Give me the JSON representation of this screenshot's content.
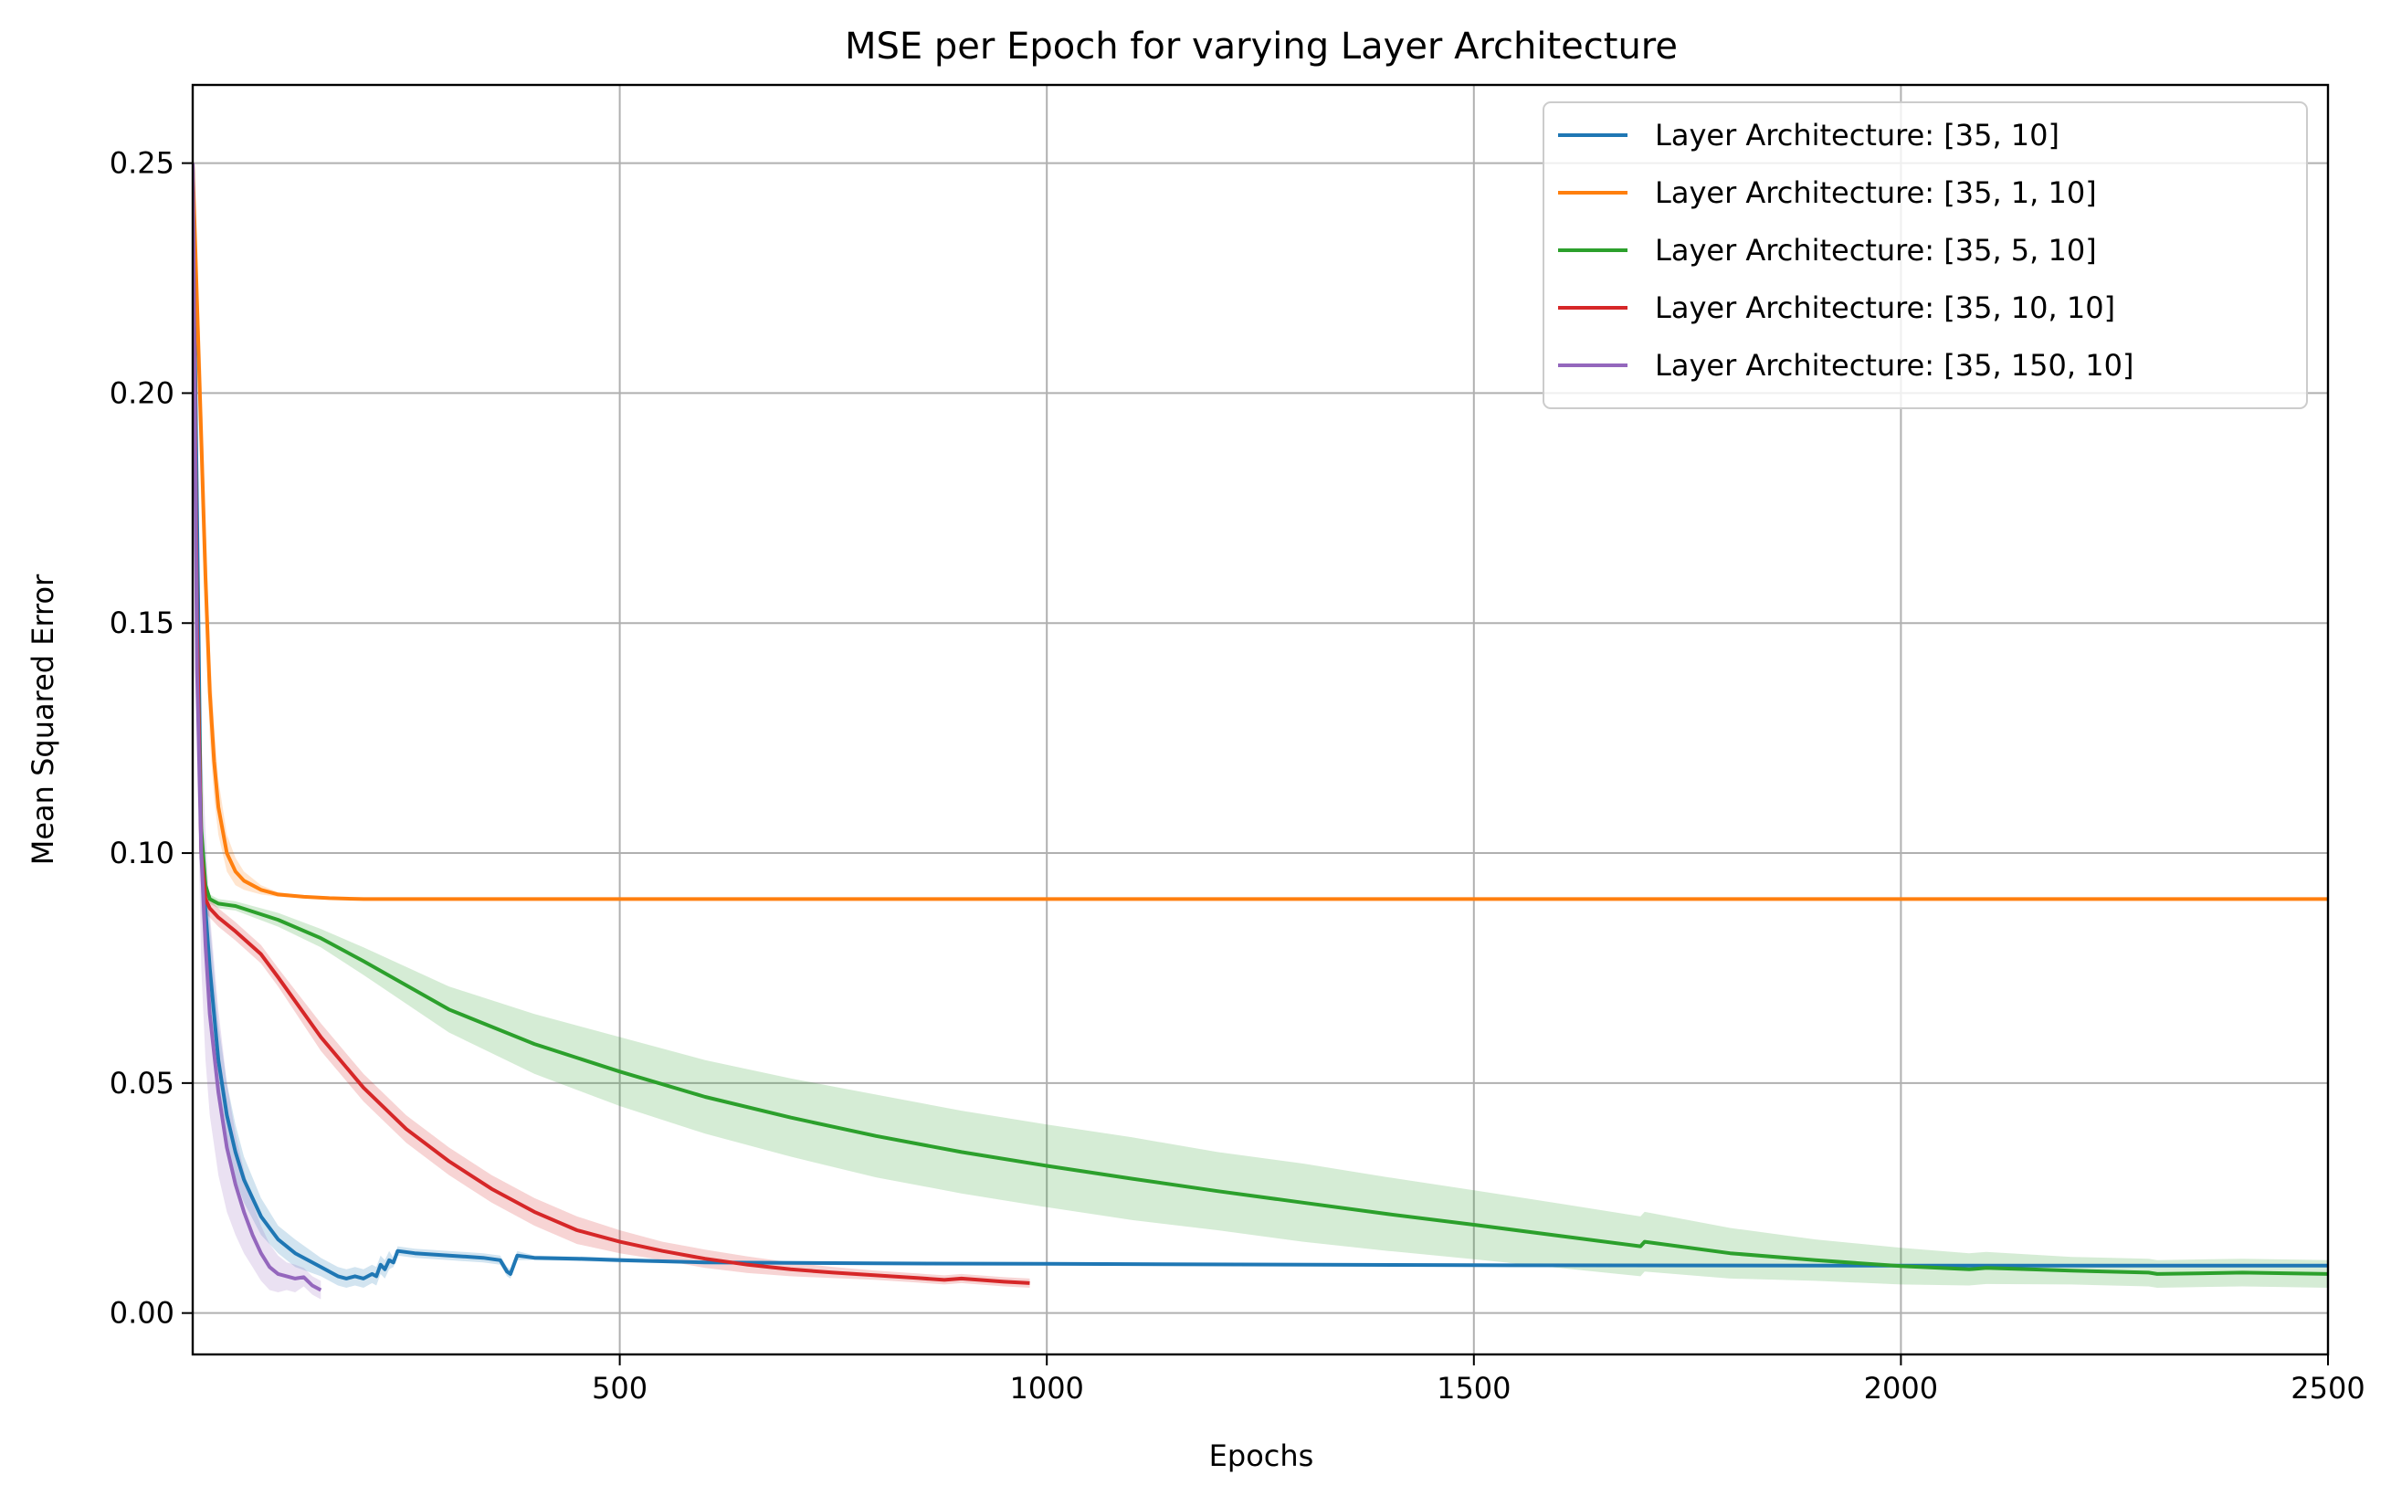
{
  "chart_data": {
    "type": "line",
    "title": "MSE per Epoch for varying Layer Architecture",
    "xlabel": "Epochs",
    "ylabel": "Mean Squared Error",
    "xlim": [
      0,
      2500
    ],
    "ylim": [
      -0.009,
      0.267
    ],
    "xticks": [
      500,
      1000,
      1500,
      2000,
      2500
    ],
    "xtick_labels": [
      "500",
      "1000",
      "1500",
      "2000",
      "2500"
    ],
    "yticks": [
      0.0,
      0.05,
      0.1,
      0.15,
      0.2,
      0.25
    ],
    "ytick_labels": [
      "0.00",
      "0.05",
      "0.10",
      "0.15",
      "0.20",
      "0.25"
    ],
    "grid": true,
    "legend_position": "top-right",
    "series": [
      {
        "name": "Layer Architecture: [35, 10]",
        "color": "#1f77b4",
        "x": [
          0,
          10,
          20,
          30,
          40,
          50,
          60,
          80,
          100,
          120,
          150,
          170,
          180,
          190,
          200,
          210,
          215,
          220,
          225,
          230,
          235,
          240,
          260,
          300,
          340,
          360,
          368,
          372,
          380,
          400,
          450,
          500,
          600,
          800,
          1000,
          1500,
          2000,
          2500
        ],
        "y": [
          0.25,
          0.1,
          0.075,
          0.055,
          0.043,
          0.035,
          0.029,
          0.021,
          0.016,
          0.013,
          0.01,
          0.008,
          0.0075,
          0.008,
          0.0075,
          0.0085,
          0.008,
          0.0105,
          0.0095,
          0.0115,
          0.011,
          0.0135,
          0.013,
          0.0125,
          0.012,
          0.0115,
          0.009,
          0.0085,
          0.0125,
          0.012,
          0.0118,
          0.0115,
          0.011,
          0.0108,
          0.0107,
          0.0104,
          0.0103,
          0.0103
        ],
        "band": [
          0.004,
          0.012,
          0.01,
          0.008,
          0.007,
          0.006,
          0.005,
          0.004,
          0.003,
          0.003,
          0.002,
          0.002,
          0.002,
          0.002,
          0.002,
          0.002,
          0.002,
          0.002,
          0.002,
          0.002,
          0.001,
          0.001,
          0.001,
          0.001,
          0.001,
          0.001,
          0.001,
          0.001,
          0.001,
          0.0005,
          0.0005,
          0.0005,
          0.0003,
          0.0003,
          0.0003,
          0.0002,
          0.0002,
          0.0002
        ]
      },
      {
        "name": "Layer Architecture: [35, 1, 10]",
        "color": "#ff7f0e",
        "x": [
          0,
          5,
          10,
          15,
          20,
          25,
          30,
          40,
          50,
          60,
          70,
          80,
          100,
          130,
          160,
          200,
          300,
          500,
          1000,
          1500,
          2000,
          2500
        ],
        "y": [
          0.25,
          0.22,
          0.19,
          0.16,
          0.135,
          0.12,
          0.11,
          0.1,
          0.096,
          0.094,
          0.093,
          0.092,
          0.091,
          0.0905,
          0.0902,
          0.09,
          0.09,
          0.09,
          0.09,
          0.09,
          0.09,
          0.09
        ],
        "band": [
          0.005,
          0.01,
          0.015,
          0.012,
          0.01,
          0.008,
          0.006,
          0.004,
          0.003,
          0.002,
          0.0015,
          0.001,
          0.0005,
          0.0003,
          0.0002,
          0.0002,
          0.0001,
          0.0001,
          0.0001,
          0.0001,
          0.0001,
          0.0001
        ]
      },
      {
        "name": "Layer Architecture: [35, 5, 10]",
        "color": "#2ca02c",
        "x": [
          0,
          5,
          10,
          15,
          20,
          30,
          50,
          100,
          150,
          200,
          300,
          400,
          500,
          600,
          700,
          800,
          900,
          1000,
          1100,
          1200,
          1300,
          1400,
          1500,
          1600,
          1695,
          1700,
          1800,
          1900,
          2000,
          2080,
          2100,
          2200,
          2290,
          2300,
          2400,
          2500
        ],
        "y": [
          0.25,
          0.15,
          0.105,
          0.093,
          0.09,
          0.089,
          0.0885,
          0.0855,
          0.0815,
          0.0765,
          0.066,
          0.0585,
          0.0525,
          0.047,
          0.0425,
          0.0385,
          0.035,
          0.032,
          0.0292,
          0.0265,
          0.024,
          0.0215,
          0.0192,
          0.0168,
          0.0145,
          0.0155,
          0.013,
          0.0115,
          0.0102,
          0.0095,
          0.0098,
          0.0092,
          0.0088,
          0.0085,
          0.0088,
          0.0085
        ],
        "band": [
          0.005,
          0.01,
          0.006,
          0.002,
          0.001,
          0.001,
          0.001,
          0.0015,
          0.002,
          0.003,
          0.005,
          0.0065,
          0.0075,
          0.008,
          0.0085,
          0.009,
          0.009,
          0.009,
          0.009,
          0.0085,
          0.0085,
          0.008,
          0.0075,
          0.007,
          0.0065,
          0.0065,
          0.0055,
          0.0045,
          0.004,
          0.0035,
          0.0035,
          0.003,
          0.003,
          0.003,
          0.003,
          0.003
        ]
      },
      {
        "name": "Layer Architecture: [35, 10, 10]",
        "color": "#d62728",
        "x": [
          0,
          5,
          10,
          15,
          20,
          30,
          50,
          80,
          100,
          150,
          200,
          250,
          300,
          350,
          400,
          450,
          500,
          550,
          600,
          650,
          700,
          750,
          800,
          850,
          880,
          900,
          950,
          980
        ],
        "y": [
          0.25,
          0.15,
          0.1,
          0.09,
          0.088,
          0.086,
          0.083,
          0.078,
          0.073,
          0.06,
          0.049,
          0.04,
          0.033,
          0.027,
          0.022,
          0.018,
          0.0155,
          0.0135,
          0.0118,
          0.0105,
          0.0095,
          0.0088,
          0.0082,
          0.0076,
          0.0072,
          0.0075,
          0.0068,
          0.0065
        ],
        "band": [
          0.005,
          0.01,
          0.006,
          0.003,
          0.002,
          0.002,
          0.002,
          0.002,
          0.002,
          0.003,
          0.003,
          0.003,
          0.003,
          0.003,
          0.003,
          0.003,
          0.0025,
          0.002,
          0.002,
          0.0018,
          0.0015,
          0.0012,
          0.001,
          0.001,
          0.001,
          0.001,
          0.001,
          0.001
        ]
      },
      {
        "name": "Layer Architecture: [35, 150, 10]",
        "color": "#9467bd",
        "x": [
          0,
          5,
          10,
          15,
          20,
          30,
          40,
          50,
          60,
          70,
          80,
          90,
          100,
          110,
          120,
          130,
          140,
          150
        ],
        "y": [
          0.25,
          0.14,
          0.1,
          0.08,
          0.065,
          0.048,
          0.036,
          0.028,
          0.022,
          0.017,
          0.013,
          0.01,
          0.0085,
          0.008,
          0.0075,
          0.0078,
          0.006,
          0.005
        ],
        "band": [
          0.005,
          0.02,
          0.025,
          0.025,
          0.022,
          0.018,
          0.014,
          0.011,
          0.009,
          0.007,
          0.006,
          0.005,
          0.004,
          0.003,
          0.003,
          0.002,
          0.002,
          0.002
        ]
      }
    ]
  }
}
